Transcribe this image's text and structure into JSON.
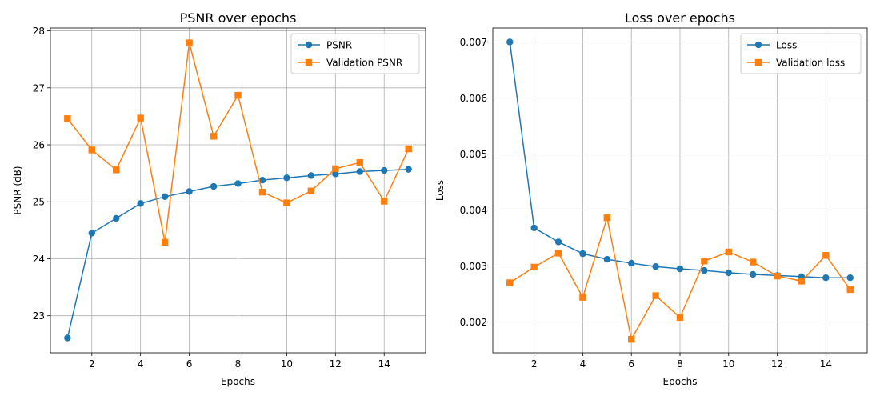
{
  "chart_data": [
    {
      "type": "line",
      "title": "PSNR over epochs",
      "xlabel": "Epochs",
      "ylabel": "PSNR (dB)",
      "x": [
        1,
        2,
        3,
        4,
        5,
        6,
        7,
        8,
        9,
        10,
        11,
        12,
        13,
        14,
        15
      ],
      "xlim": [
        0.3,
        15.7
      ],
      "ylim": [
        22.35,
        28.05
      ],
      "xticks": [
        2,
        4,
        6,
        8,
        10,
        12,
        14
      ],
      "yticks": [
        23,
        24,
        25,
        26,
        27,
        28
      ],
      "ytick_decimals": 0,
      "grid": true,
      "legend_position": "top-right",
      "series": [
        {
          "name": "PSNR",
          "color": "#1f77b4",
          "marker": "circle",
          "values": [
            22.61,
            24.45,
            24.71,
            24.97,
            25.09,
            25.18,
            25.27,
            25.32,
            25.38,
            25.42,
            25.46,
            25.49,
            25.53,
            25.55,
            25.57
          ]
        },
        {
          "name": "Validation PSNR",
          "color": "#ff7f0e",
          "marker": "square",
          "values": [
            26.46,
            25.91,
            25.56,
            26.47,
            24.29,
            27.79,
            26.15,
            26.87,
            25.17,
            24.98,
            25.19,
            25.58,
            25.69,
            25.01,
            25.93
          ]
        }
      ]
    },
    {
      "type": "line",
      "title": "Loss over epochs",
      "xlabel": "Epochs",
      "ylabel": "Loss",
      "x": [
        1,
        2,
        3,
        4,
        5,
        6,
        7,
        8,
        9,
        10,
        11,
        12,
        13,
        14,
        15
      ],
      "xlim": [
        0.3,
        15.7
      ],
      "ylim": [
        0.00145,
        0.00725
      ],
      "xticks": [
        2,
        4,
        6,
        8,
        10,
        12,
        14
      ],
      "yticks": [
        0.002,
        0.003,
        0.004,
        0.005,
        0.006,
        0.007
      ],
      "ytick_decimals": 3,
      "grid": true,
      "legend_position": "top-right",
      "series": [
        {
          "name": "Loss",
          "color": "#1f77b4",
          "marker": "circle",
          "values": [
            0.007,
            0.00368,
            0.00343,
            0.00322,
            0.00312,
            0.00305,
            0.00299,
            0.00295,
            0.00292,
            0.00288,
            0.00285,
            0.00283,
            0.00281,
            0.00279,
            0.00279
          ]
        },
        {
          "name": "Validation loss",
          "color": "#ff7f0e",
          "marker": "square",
          "values": [
            0.0027,
            0.00298,
            0.00323,
            0.00244,
            0.00386,
            0.00169,
            0.00247,
            0.00208,
            0.00309,
            0.00325,
            0.00307,
            0.00282,
            0.00273,
            0.00319,
            0.00258
          ]
        }
      ]
    }
  ]
}
